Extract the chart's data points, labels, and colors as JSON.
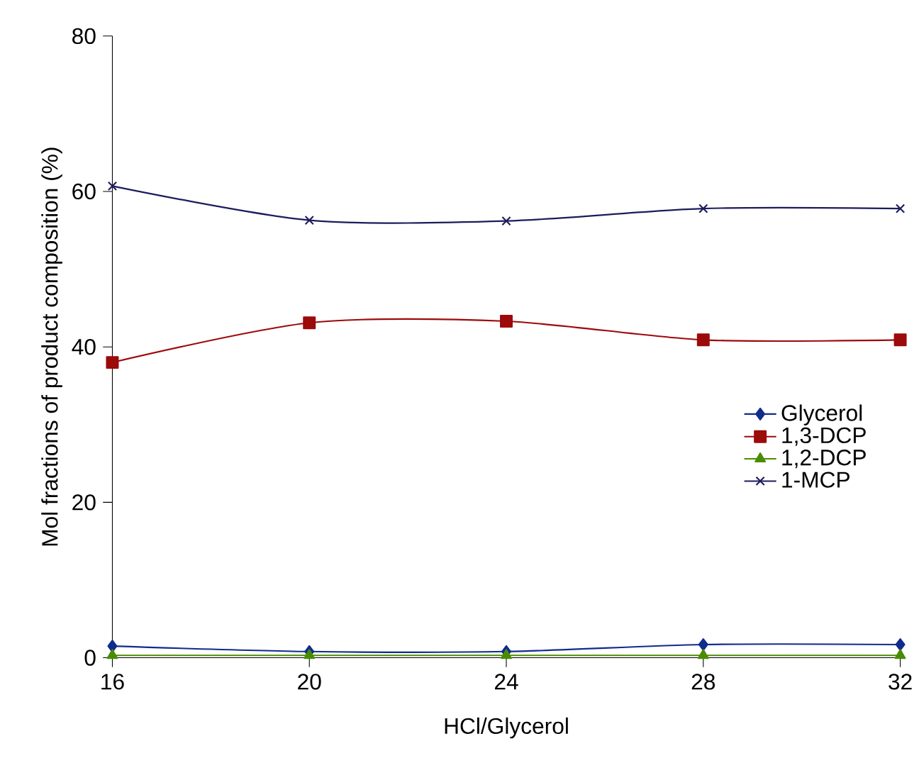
{
  "chart_data": {
    "type": "line",
    "xlabel": "HCl/Glycerol",
    "ylabel": "Mol fractions of product composition (%)",
    "x": [
      16,
      20,
      24,
      28,
      32
    ],
    "xlim": [
      16,
      32
    ],
    "xticks": [
      16,
      20,
      24,
      28,
      32
    ],
    "ylim": [
      0,
      80
    ],
    "yticks": [
      0,
      20,
      40,
      60,
      80
    ],
    "legend": "right",
    "line_style": "solid",
    "series": [
      {
        "name": "Glycerol",
        "color": "#102c8c",
        "marker": "diamond",
        "values": [
          1.5,
          0.8,
          0.8,
          1.7,
          1.7
        ]
      },
      {
        "name": "1,3-DCP",
        "color": "#9c0a0a",
        "marker": "square",
        "values": [
          38.0,
          43.1,
          43.3,
          40.9,
          40.9
        ]
      },
      {
        "name": "1,2-DCP",
        "color": "#4a8c00",
        "marker": "triangle",
        "values": [
          0.3,
          0.3,
          0.3,
          0.3,
          0.3
        ]
      },
      {
        "name": "1-MCP",
        "color": "#1c1c5c",
        "marker": "cross",
        "values": [
          60.7,
          56.3,
          56.2,
          57.8,
          57.8
        ]
      }
    ]
  }
}
